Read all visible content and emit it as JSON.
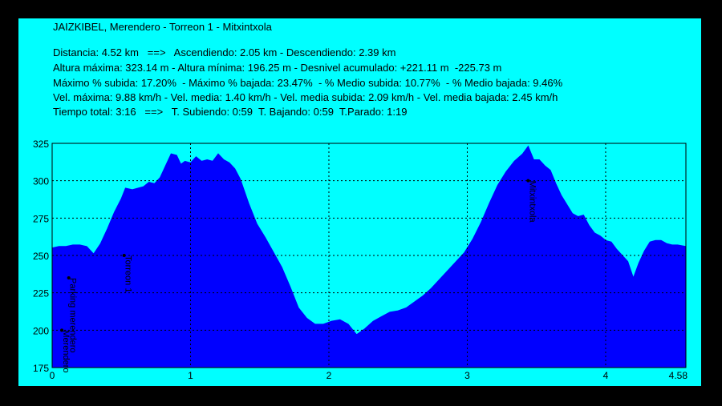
{
  "header": {
    "title": "JAIZKIBEL, Merendero - Torreon 1 - Mitxintxola",
    "lines": [
      "Distancia: 4.52 km   ==>   Ascendiendo: 2.05 km - Descendiendo: 2.39 km",
      "Altura máxima: 323.14 m - Altura mínima: 196.25 m - Desnivel acumulado: +221.11 m  -225.73 m",
      "Máximo % subida: 17.20%  - Máximo % bajada: 23.47%  - % Medio subida: 10.77%  - % Medio bajada: 9.46%",
      "Vel. máxima: 9.88 km/h - Vel. media: 1.40 km/h - Vel. media subida: 2.09 km/h - Vel. media bajada: 2.45 km/h",
      "Tiempo total: 3:16   ==>   T. Subiendo: 0:59  T. Bajando: 0:59  T.Parado: 1:19"
    ]
  },
  "colors": {
    "background": "#00ffff",
    "fill": "#0000ff",
    "frame": "#000000",
    "grid": "#000000"
  },
  "chart_data": {
    "type": "area",
    "title": "",
    "xlabel": "",
    "ylabel": "",
    "xlim": [
      0,
      4.58
    ],
    "ylim": [
      175,
      325
    ],
    "xticks": [
      0,
      1,
      2,
      3,
      4,
      4.58
    ],
    "xtick_labels": [
      "0",
      "1",
      "2",
      "3",
      "4",
      "4.58"
    ],
    "yticks": [
      175,
      200,
      225,
      250,
      275,
      300,
      325
    ],
    "ytick_labels": [
      "175",
      "200",
      "225",
      "250",
      "275",
      "300",
      "325"
    ],
    "grid": true,
    "series": [
      {
        "x": [
          0,
          0.05,
          0.1,
          0.15,
          0.2,
          0.25,
          0.3,
          0.35,
          0.4,
          0.45,
          0.5,
          0.53,
          0.58,
          0.62,
          0.66,
          0.7,
          0.74,
          0.78,
          0.82,
          0.86,
          0.9,
          0.93,
          0.96,
          1.0,
          1.04,
          1.08,
          1.12,
          1.16,
          1.2,
          1.24,
          1.28,
          1.32,
          1.36,
          1.42,
          1.48,
          1.54,
          1.6,
          1.66,
          1.72,
          1.78,
          1.84,
          1.9,
          1.96,
          2.02,
          2.08,
          2.14,
          2.2,
          2.26,
          2.32,
          2.38,
          2.44,
          2.5,
          2.56,
          2.62,
          2.68,
          2.74,
          2.8,
          2.86,
          2.92,
          2.98,
          3.04,
          3.1,
          3.16,
          3.22,
          3.28,
          3.34,
          3.4,
          3.44,
          3.48,
          3.52,
          3.56,
          3.6,
          3.64,
          3.68,
          3.72,
          3.76,
          3.8,
          3.84,
          3.88,
          3.92,
          3.96,
          4.0,
          4.04,
          4.08,
          4.12,
          4.16,
          4.2,
          4.24,
          4.28,
          4.32,
          4.36,
          4.4,
          4.44,
          4.48,
          4.52,
          4.58
        ],
        "y": [
          255,
          256,
          256,
          257,
          257,
          256,
          251,
          258,
          268,
          279,
          288,
          295,
          294,
          295,
          296,
          299,
          298,
          302,
          310,
          318,
          317,
          311,
          313,
          312,
          316,
          313,
          314,
          313,
          318,
          314,
          312,
          308,
          301,
          285,
          271,
          262,
          252,
          242,
          229,
          215,
          208,
          204,
          204,
          206,
          207,
          204,
          197,
          201,
          206,
          209,
          212,
          213,
          215,
          219,
          223,
          228,
          234,
          240,
          246,
          252,
          261,
          272,
          285,
          297,
          306,
          313,
          318,
          323,
          314,
          314,
          310,
          307,
          298,
          290,
          284,
          278,
          276,
          277,
          270,
          265,
          263,
          260,
          259,
          254,
          250,
          246,
          235,
          245,
          253,
          259,
          260,
          260,
          258,
          257,
          257,
          256
        ]
      }
    ],
    "annotations": [
      {
        "label": "Parking merendero",
        "x": 0.12,
        "y": 235
      },
      {
        "label": "Merendero",
        "x": 0.07,
        "y": 200
      },
      {
        "label": "Torreon 1",
        "x": 0.52,
        "y": 250
      },
      {
        "label": "Mitxintxola",
        "x": 3.44,
        "y": 300
      }
    ]
  }
}
